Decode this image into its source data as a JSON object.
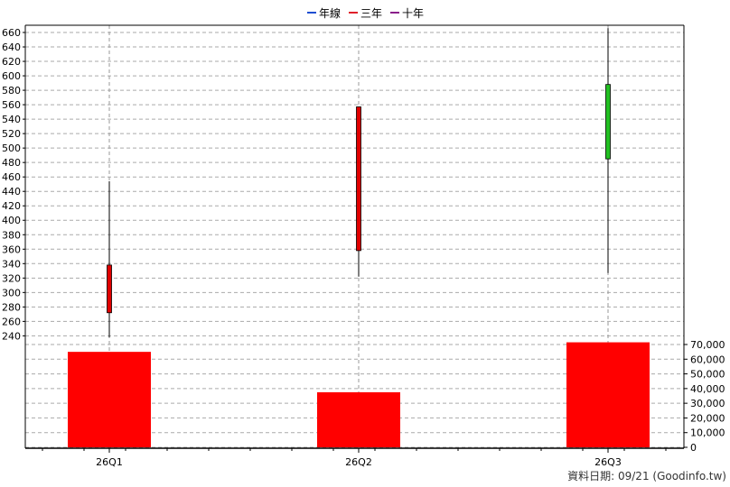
{
  "legend": [
    {
      "label": "年線",
      "color": "#1f4fd1"
    },
    {
      "label": "三年",
      "color": "#e0202a"
    },
    {
      "label": "十年",
      "color": "#8a1e8a"
    }
  ],
  "footer": "資料日期: 09/21  (Goodinfo.tw)",
  "chart_data": {
    "type": "candlestick+bar",
    "categories": [
      "26Q1",
      "26Q2",
      "26Q3"
    ],
    "price": {
      "ylim": [
        228,
        670
      ],
      "ticks": [
        240,
        260,
        280,
        300,
        320,
        340,
        360,
        380,
        400,
        420,
        440,
        460,
        480,
        500,
        520,
        540,
        560,
        580,
        600,
        620,
        640,
        660
      ],
      "candles": [
        {
          "open": 272,
          "close": 338,
          "high": 454,
          "low": 238,
          "color": "#e00000"
        },
        {
          "open": 358,
          "close": 557,
          "high": 557,
          "low": 322,
          "color": "#e00000"
        },
        {
          "open": 588,
          "close": 485,
          "high": 666,
          "low": 327,
          "color": "#22c022"
        }
      ]
    },
    "volume": {
      "ylim": [
        0,
        70000
      ],
      "ticks": [
        0,
        10000,
        20000,
        30000,
        40000,
        50000,
        60000,
        70000
      ],
      "tick_labels": [
        "0",
        "10,000",
        "20,000",
        "30,000",
        "40,000",
        "50,000",
        "60,000",
        "70,000"
      ],
      "values": [
        65000,
        37500,
        71500
      ],
      "color": "#ff0000"
    },
    "grid": true,
    "legend_position": "top-center"
  }
}
